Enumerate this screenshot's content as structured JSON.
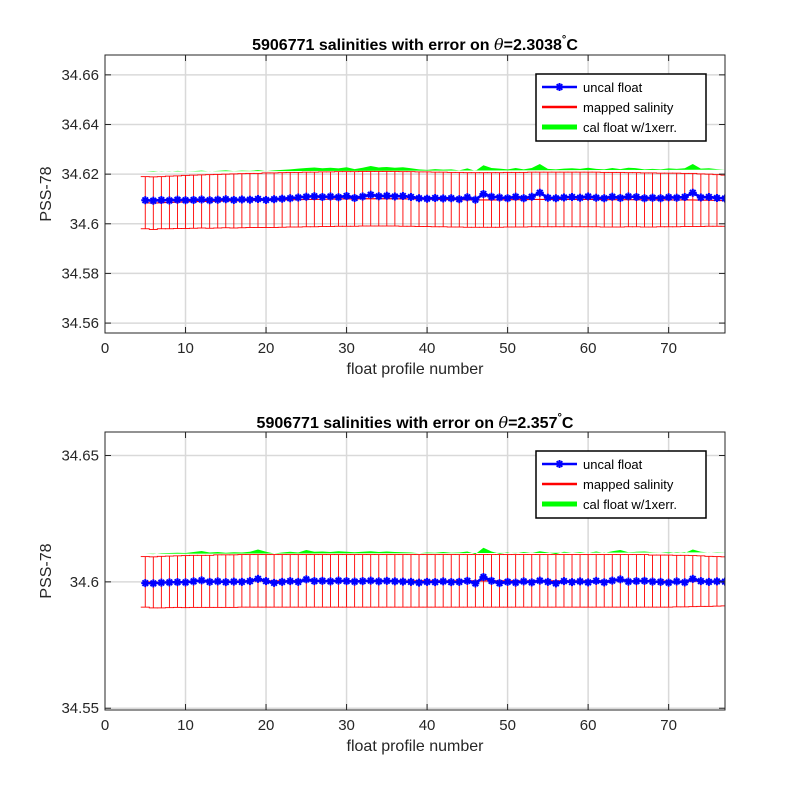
{
  "colors": {
    "uncal": "#0000ff",
    "mapped": "#ff0000",
    "cal": "#00ff00",
    "grid": "#d9d9d9",
    "axis": "#262626"
  },
  "chart_data": [
    {
      "type": "line",
      "title_prefix": "5906771 salinities with error on ",
      "title_theta": "θ",
      "title_value": "=2.3038",
      "title_unit": "C",
      "title_degree": "°",
      "xlabel": "float profile number",
      "ylabel": "PSS-78",
      "xlim": [
        0,
        77
      ],
      "ylim": [
        34.556,
        34.668
      ],
      "xticks": [
        0,
        10,
        20,
        30,
        40,
        50,
        60,
        70
      ],
      "yticks": [
        34.56,
        34.58,
        34.6,
        34.62,
        34.64,
        34.66
      ],
      "ytick_labels": [
        "34.56",
        "34.58",
        "34.6",
        "34.62",
        "34.64",
        "34.66"
      ],
      "grid": true,
      "legend_position": "top-right",
      "legend": [
        "uncal float",
        "mapped salinity",
        "cal float w/1xerr."
      ],
      "x": [
        5,
        6,
        7,
        8,
        9,
        10,
        11,
        12,
        13,
        14,
        15,
        16,
        17,
        18,
        19,
        20,
        21,
        22,
        23,
        24,
        25,
        26,
        27,
        28,
        29,
        30,
        31,
        32,
        33,
        34,
        35,
        36,
        37,
        38,
        39,
        40,
        41,
        42,
        43,
        44,
        45,
        46,
        47,
        48,
        49,
        50,
        51,
        52,
        53,
        54,
        55,
        56,
        57,
        58,
        59,
        60,
        61,
        62,
        63,
        64,
        65,
        66,
        67,
        68,
        69,
        70,
        71,
        72,
        73,
        74,
        75,
        76,
        77
      ],
      "uncal_float": [
        34.6095,
        34.6093,
        34.6096,
        34.6094,
        34.6097,
        34.6095,
        34.6096,
        34.6098,
        34.6095,
        34.6097,
        34.6099,
        34.6096,
        34.6098,
        34.6097,
        34.61,
        34.6096,
        34.6099,
        34.6101,
        34.6103,
        34.6106,
        34.6109,
        34.6111,
        34.6108,
        34.611,
        34.6107,
        34.6112,
        34.6104,
        34.611,
        34.6117,
        34.6111,
        34.6113,
        34.611,
        34.6112,
        34.6108,
        34.6103,
        34.6101,
        34.6104,
        34.6102,
        34.6103,
        34.6099,
        34.6107,
        34.6097,
        34.612,
        34.6109,
        34.6106,
        34.6103,
        34.6109,
        34.6103,
        34.6109,
        34.6125,
        34.6105,
        34.6103,
        34.6106,
        34.6108,
        34.6105,
        34.611,
        34.6105,
        34.6103,
        34.6109,
        34.6104,
        34.611,
        34.6108,
        34.6103,
        34.6105,
        34.6103,
        34.6107,
        34.6105,
        34.6108,
        34.6125,
        34.6106,
        34.6108,
        34.6104,
        34.6102,
        34.6106,
        34.6103,
        34.6107,
        34.6109
      ],
      "mapped_salinity": [
        34.6085,
        34.6083,
        34.6085,
        34.6086,
        34.6087,
        34.6088,
        34.6089,
        34.609,
        34.609,
        34.6091,
        34.6092,
        34.6092,
        34.6093,
        34.6094,
        34.6094,
        34.6095,
        34.6095,
        34.6096,
        34.6097,
        34.6097,
        34.6098,
        34.6098,
        34.6099,
        34.6099,
        34.61,
        34.61,
        34.61,
        34.6101,
        34.6101,
        34.6101,
        34.6101,
        34.6101,
        34.61,
        34.61,
        34.6099,
        34.6099,
        34.6098,
        34.6098,
        34.6097,
        34.6097,
        34.6096,
        34.6096,
        34.6096,
        34.6096,
        34.6096,
        34.6097,
        34.6097,
        34.6097,
        34.6098,
        34.6098,
        34.6098,
        34.6098,
        34.6098,
        34.6098,
        34.6098,
        34.6098,
        34.6098,
        34.6097,
        34.6097,
        34.6097,
        34.6097,
        34.6097,
        34.6096,
        34.6096,
        34.6096,
        34.6096,
        34.6096,
        34.6096,
        34.6096,
        34.6095,
        34.6095,
        34.6094,
        34.6093,
        34.6092,
        34.6091,
        34.609,
        34.6089
      ],
      "mapped_error": [
        0.0105,
        0.0106,
        0.0105,
        0.0106,
        0.0106,
        0.0107,
        0.0107,
        0.0107,
        0.0108,
        0.0108,
        0.0108,
        0.0109,
        0.0109,
        0.0109,
        0.0109,
        0.011,
        0.011,
        0.011,
        0.011,
        0.011,
        0.011,
        0.011,
        0.011,
        0.011,
        0.011,
        0.011,
        0.011,
        0.011,
        0.011,
        0.011,
        0.011,
        0.011,
        0.011,
        0.011,
        0.011,
        0.011,
        0.011,
        0.011,
        0.011,
        0.011,
        0.011,
        0.011,
        0.011,
        0.011,
        0.011,
        0.011,
        0.011,
        0.011,
        0.011,
        0.011,
        0.011,
        0.011,
        0.011,
        0.011,
        0.011,
        0.011,
        0.011,
        0.011,
        0.011,
        0.011,
        0.0109,
        0.0109,
        0.0109,
        0.0109,
        0.0108,
        0.0108,
        0.0108,
        0.0107,
        0.0107,
        0.0106,
        0.0105,
        0.0104,
        0.0103,
        0.0101,
        0.0099,
        0.0097,
        0.0095
      ],
      "cal_offset": 0.0047,
      "cal_error": 0.0069
    },
    {
      "type": "line",
      "title_prefix": "5906771 salinities with error on ",
      "title_theta": "θ",
      "title_value": "=2.357",
      "title_unit": "C",
      "title_degree": "°",
      "xlabel": "float profile number",
      "ylabel": "PSS-78",
      "xlim": [
        0,
        77
      ],
      "ylim": [
        34.5493,
        34.6593
      ],
      "xticks": [
        0,
        10,
        20,
        30,
        40,
        50,
        60,
        70
      ],
      "yticks": [
        34.55,
        34.6,
        34.65
      ],
      "ytick_labels": [
        "34.55",
        "34.6",
        "34.65"
      ],
      "grid": true,
      "legend_position": "top-right",
      "legend": [
        "uncal float",
        "mapped salinity",
        "cal float w/1xerr."
      ],
      "x": [
        5,
        6,
        7,
        8,
        9,
        10,
        11,
        12,
        13,
        14,
        15,
        16,
        17,
        18,
        19,
        20,
        21,
        22,
        23,
        24,
        25,
        26,
        27,
        28,
        29,
        30,
        31,
        32,
        33,
        34,
        35,
        36,
        37,
        38,
        39,
        40,
        41,
        42,
        43,
        44,
        45,
        46,
        47,
        48,
        49,
        50,
        51,
        52,
        53,
        54,
        55,
        56,
        57,
        58,
        59,
        60,
        61,
        62,
        63,
        64,
        65,
        66,
        67,
        68,
        69,
        70,
        71,
        72,
        73,
        74,
        75,
        76,
        77
      ],
      "uncal_float": [
        34.5995,
        34.5994,
        34.5997,
        34.5998,
        34.5999,
        34.5998,
        34.6002,
        34.6006,
        34.6,
        34.6002,
        34.5999,
        34.6001,
        34.6,
        34.6003,
        34.6012,
        34.6003,
        34.5996,
        34.6,
        34.6003,
        34.6,
        34.601,
        34.6003,
        34.6004,
        34.6002,
        34.6005,
        34.6003,
        34.6001,
        34.6003,
        34.6005,
        34.6002,
        34.6004,
        34.6002,
        34.6001,
        34.6,
        34.5997,
        34.6,
        34.5999,
        34.6002,
        34.5999,
        34.6,
        34.6004,
        34.5994,
        34.6019,
        34.6004,
        34.5995,
        34.6,
        34.5997,
        34.6002,
        34.5998,
        34.6005,
        34.6,
        34.5994,
        34.6003,
        34.5999,
        34.6002,
        34.5998,
        34.6004,
        34.5998,
        34.6005,
        34.601,
        34.6001,
        34.6003,
        34.6004,
        34.6001,
        34.6,
        34.5997,
        34.6002,
        34.5998,
        34.6012,
        34.6003,
        34.6,
        34.6002,
        34.6001,
        34.6003,
        34.6,
        34.6001,
        34.6004
      ],
      "mapped_salinity": [
        34.6,
        34.5998,
        34.5999,
        34.6,
        34.6001,
        34.6001,
        34.6002,
        34.6002,
        34.6002,
        34.6003,
        34.6003,
        34.6003,
        34.6004,
        34.6004,
        34.6004,
        34.6004,
        34.6004,
        34.6004,
        34.6004,
        34.6004,
        34.6004,
        34.6004,
        34.6004,
        34.6004,
        34.6004,
        34.6004,
        34.6004,
        34.6004,
        34.6004,
        34.6004,
        34.6004,
        34.6004,
        34.6004,
        34.6004,
        34.6004,
        34.6004,
        34.6004,
        34.6004,
        34.6004,
        34.6004,
        34.6004,
        34.6004,
        34.6004,
        34.6004,
        34.6004,
        34.6004,
        34.6004,
        34.6004,
        34.6004,
        34.6004,
        34.6004,
        34.6004,
        34.6004,
        34.6004,
        34.6004,
        34.6004,
        34.6004,
        34.6004,
        34.6004,
        34.6004,
        34.6004,
        34.6004,
        34.6004,
        34.6003,
        34.6003,
        34.6003,
        34.6003,
        34.6003,
        34.6003,
        34.6003,
        34.6002,
        34.6002,
        34.6002,
        34.6002,
        34.6001,
        34.6001,
        34.6001
      ],
      "mapped_error": [
        0.01,
        0.0101,
        0.0102,
        0.0102,
        0.0102,
        0.0103,
        0.0103,
        0.0103,
        0.0103,
        0.0104,
        0.0104,
        0.0104,
        0.0104,
        0.0104,
        0.0104,
        0.0104,
        0.0104,
        0.0104,
        0.0104,
        0.0104,
        0.0104,
        0.0104,
        0.0104,
        0.0104,
        0.0104,
        0.0104,
        0.0104,
        0.0104,
        0.0104,
        0.0104,
        0.0104,
        0.0104,
        0.0104,
        0.0104,
        0.0104,
        0.0104,
        0.0104,
        0.0104,
        0.0104,
        0.0104,
        0.0104,
        0.0104,
        0.0104,
        0.0104,
        0.0104,
        0.0104,
        0.0104,
        0.0104,
        0.0104,
        0.0104,
        0.0104,
        0.0104,
        0.0104,
        0.0104,
        0.0104,
        0.0104,
        0.0104,
        0.0104,
        0.0104,
        0.0104,
        0.0104,
        0.0104,
        0.0104,
        0.0103,
        0.0103,
        0.0103,
        0.0102,
        0.0102,
        0.0101,
        0.01,
        0.0099,
        0.0098,
        0.0097,
        0.0096,
        0.0095,
        0.0094,
        0.0093
      ],
      "cal_offset": 0.0047,
      "cal_error": 0.0069
    }
  ]
}
